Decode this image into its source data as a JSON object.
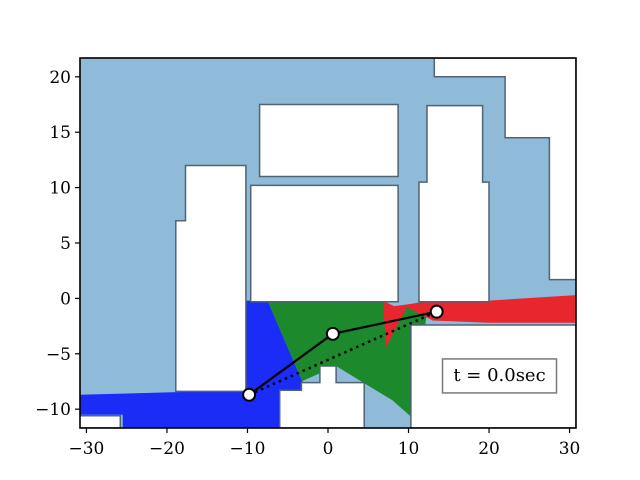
{
  "chart_data": {
    "type": "map",
    "xlim": [
      -30.8,
      30.8
    ],
    "ylim": [
      -11.7,
      21.7
    ],
    "x_ticks": [
      -30,
      -20,
      -10,
      0,
      10,
      20,
      30
    ],
    "y_ticks": [
      -10,
      -5,
      0,
      5,
      10,
      15,
      20
    ],
    "x_tick_labels": [
      "−30",
      "−20",
      "−10",
      "0",
      "10",
      "20",
      "30"
    ],
    "y_tick_labels": [
      "−10",
      "−5",
      "0",
      "5",
      "10",
      "15",
      "20"
    ],
    "grid": false,
    "colors": {
      "free_space": "#8fbad8",
      "obstacle": "#ffffff",
      "obstacle_edge": "#4f6474",
      "region_blue": "#1a2cf6",
      "region_green": "#1c8a2c",
      "region_red": "#e8262e",
      "robot_line": "#000000"
    },
    "free_space": [
      [
        -31,
        -11.7
      ],
      [
        -31,
        21.7
      ],
      [
        30.8,
        21.7
      ],
      [
        30.8,
        -11.7
      ]
    ],
    "obstacles": [
      [
        [
          -8.5,
          11
        ],
        [
          -8.5,
          17.5
        ],
        [
          8.7,
          17.5
        ],
        [
          8.7,
          11
        ]
      ],
      [
        [
          -9.6,
          -0.3
        ],
        [
          -9.6,
          10.2
        ],
        [
          8.7,
          10.2
        ],
        [
          8.7,
          -0.3
        ]
      ],
      [
        [
          11.3,
          -0.3
        ],
        [
          11.3,
          10.5
        ],
        [
          12.3,
          10.5
        ],
        [
          12.3,
          17.4
        ],
        [
          19.2,
          17.4
        ],
        [
          19.2,
          10.5
        ],
        [
          20,
          10.5
        ],
        [
          20,
          -0.3
        ]
      ],
      [
        [
          -18.9,
          -8.4
        ],
        [
          -18.9,
          7
        ],
        [
          -17.7,
          7
        ],
        [
          -17.7,
          12
        ],
        [
          -10.2,
          12
        ],
        [
          -10.2,
          -8.4
        ]
      ],
      [
        [
          13.2,
          21.7
        ],
        [
          13.2,
          20
        ],
        [
          22,
          20
        ],
        [
          22,
          14.5
        ],
        [
          27.5,
          14.5
        ],
        [
          27.5,
          1.7
        ],
        [
          30.8,
          1.7
        ],
        [
          30.8,
          21.7
        ]
      ],
      [
        [
          -6,
          -11.7
        ],
        [
          -6,
          -8.3
        ],
        [
          -3.3,
          -8.3
        ],
        [
          -3.3,
          -7.6
        ],
        [
          -1,
          -7.6
        ],
        [
          -1,
          -6.1
        ],
        [
          1,
          -6.1
        ],
        [
          1,
          -7.6
        ],
        [
          4.5,
          -7.6
        ],
        [
          4.5,
          -11.7
        ]
      ],
      [
        [
          10.3,
          -11.7
        ],
        [
          10.3,
          -2.4
        ],
        [
          30.8,
          -2.4
        ],
        [
          30.8,
          -11.7
        ]
      ],
      [
        [
          -31,
          -11.7
        ],
        [
          -31,
          -10.6
        ],
        [
          -25.8,
          -10.6
        ],
        [
          -25.8,
          -11.7
        ]
      ]
    ],
    "regions": [
      {
        "color": "region_blue",
        "points": [
          [
            -10.5,
            -0.2
          ],
          [
            -7.5,
            -0.2
          ],
          [
            -2.6,
            -8.5
          ],
          [
            -6,
            -8.7
          ],
          [
            -6,
            -11.7
          ],
          [
            -25.5,
            -11.7
          ],
          [
            -25.5,
            -10.5
          ],
          [
            -31,
            -10.5
          ],
          [
            -31,
            -8.7
          ],
          [
            -10.2,
            -8.3
          ],
          [
            -10.2,
            -3.5
          ]
        ]
      },
      {
        "color": "region_green",
        "points": [
          [
            -7.5,
            -0.2
          ],
          [
            6.8,
            -0.2
          ],
          [
            8.2,
            -0.8
          ],
          [
            12.5,
            -0.2
          ],
          [
            10.5,
            -10.8
          ],
          [
            8,
            -9.2
          ],
          [
            3,
            -7
          ],
          [
            1,
            -6.1
          ],
          [
            -3.3,
            -7.5
          ],
          [
            -3.3,
            -8.3
          ],
          [
            -2.6,
            -8.5
          ]
        ]
      },
      {
        "color": "region_red",
        "points": [
          [
            6.8,
            -0.2
          ],
          [
            8.2,
            -0.7
          ],
          [
            13.5,
            -0.2
          ],
          [
            20,
            -0.2
          ],
          [
            30.8,
            0.3
          ],
          [
            30.8,
            -2.2
          ],
          [
            20,
            -2.2
          ],
          [
            13,
            -2
          ],
          [
            9.8,
            -0.8
          ],
          [
            7.2,
            -4.4
          ]
        ]
      }
    ],
    "solid_path": [
      [
        -9.8,
        -8.7
      ],
      [
        0.6,
        -3.2
      ],
      [
        13.5,
        -1.2
      ]
    ],
    "dotted_path": [
      [
        -9.8,
        -8.7
      ],
      [
        13.5,
        -1.2
      ]
    ],
    "joints": [
      [
        -9.8,
        -8.7
      ],
      [
        0.6,
        -3.2
      ],
      [
        13.5,
        -1.2
      ]
    ],
    "annotation": {
      "text": "t = 0.0sec",
      "x": 21.3,
      "y": -7
    }
  }
}
